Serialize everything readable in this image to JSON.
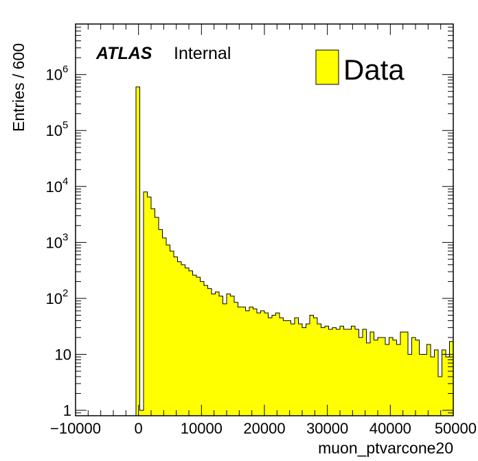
{
  "chart_data": {
    "type": "bar",
    "title": "",
    "xlabel": "muon_ptvarcone20",
    "ylabel": "Entries / 600",
    "xlim": [
      -10000,
      50000
    ],
    "ylim": [
      0.8,
      8000000
    ],
    "yscale": "log",
    "bin_width": 600,
    "first_bin_low": -10000,
    "x_ticks": [
      {
        "value": -10000,
        "label": "−10000"
      },
      {
        "value": 0,
        "label": "0"
      },
      {
        "value": 10000,
        "label": "10000"
      },
      {
        "value": 20000,
        "label": "20000"
      },
      {
        "value": 30000,
        "label": "30000"
      },
      {
        "value": 40000,
        "label": "40000"
      },
      {
        "value": 50000,
        "label": "50000"
      }
    ],
    "y_ticks": [
      {
        "value": 1,
        "base": "1",
        "exp": ""
      },
      {
        "value": 10,
        "base": "10",
        "exp": ""
      },
      {
        "value": 100,
        "base": "10",
        "exp": "2"
      },
      {
        "value": 1000,
        "base": "10",
        "exp": "3"
      },
      {
        "value": 10000,
        "base": "10",
        "exp": "4"
      },
      {
        "value": 100000,
        "base": "10",
        "exp": "5"
      },
      {
        "value": 1000000,
        "base": "10",
        "exp": "6"
      }
    ],
    "legend": {
      "position": "top-right",
      "entries": [
        {
          "label": "Data",
          "color": "#ffff00"
        }
      ]
    },
    "fill_color": "#ffff00",
    "line_color": "#000000",
    "grid": false,
    "series": [
      {
        "name": "Data",
        "values": [
          0,
          0,
          0,
          0,
          0,
          0,
          0,
          0,
          0,
          0,
          0,
          0,
          0,
          0,
          0,
          0,
          600000,
          1,
          8000,
          6500,
          4000,
          2800,
          1700,
          1200,
          900,
          700,
          550,
          450,
          400,
          350,
          310,
          260,
          240,
          200,
          170,
          150,
          120,
          130,
          110,
          80,
          120,
          110,
          85,
          70,
          70,
          60,
          70,
          65,
          55,
          60,
          55,
          45,
          50,
          55,
          45,
          40,
          40,
          35,
          45,
          35,
          30,
          35,
          50,
          45,
          35,
          30,
          32,
          28,
          30,
          28,
          32,
          28,
          28,
          32,
          28,
          20,
          28,
          16,
          25,
          18,
          20,
          20,
          15,
          20,
          18,
          15,
          25,
          25,
          10,
          20,
          18,
          10,
          10,
          15,
          9,
          12,
          4,
          12,
          9,
          17,
          12,
          10
        ]
      }
    ]
  },
  "atlas_label": {
    "bold": "ATLAS",
    "text": "Internal"
  }
}
